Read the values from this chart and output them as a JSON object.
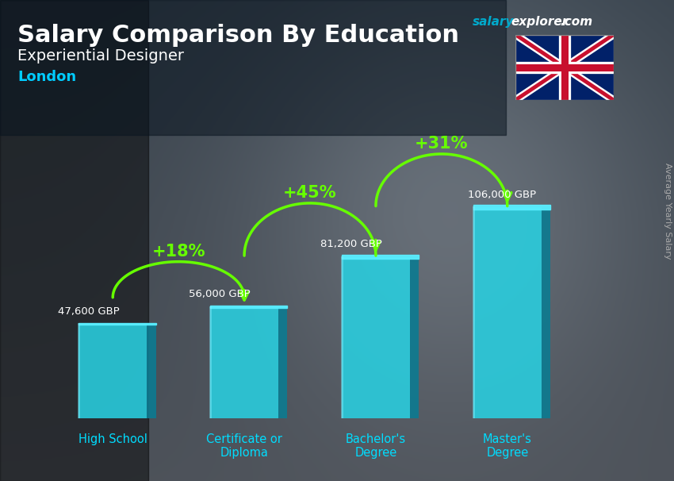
{
  "title": "Salary Comparison By Education",
  "subtitle": "Experiential Designer",
  "location": "London",
  "ylabel": "Average Yearly Salary",
  "categories": [
    "High School",
    "Certificate or\nDiploma",
    "Bachelor's\nDegree",
    "Master's\nDegree"
  ],
  "values": [
    47600,
    56000,
    81200,
    106000
  ],
  "value_labels": [
    "47,600 GBP",
    "56,000 GBP",
    "81,200 GBP",
    "106,000 GBP"
  ],
  "pct_labels": [
    "+18%",
    "+45%",
    "+31%"
  ],
  "bar_face_color": "#29cfe0",
  "bar_top_color": "#5aeeff",
  "bar_right_color": "#0e7a90",
  "bar_left_highlight": "#80f0ff",
  "pct_color": "#66ff00",
  "arrow_color": "#66ff00",
  "title_color": "#ffffff",
  "subtitle_color": "#ffffff",
  "location_color": "#00ccff",
  "value_label_color": "#ffffff",
  "xlabel_color": "#00ddff",
  "salary_text_color": "#00aacc",
  "explorer_text_color": "#ffffff",
  "com_text_color": "#ffffff",
  "ylabel_color": "#cccccc",
  "figsize": [
    8.5,
    6.06
  ],
  "dpi": 100
}
